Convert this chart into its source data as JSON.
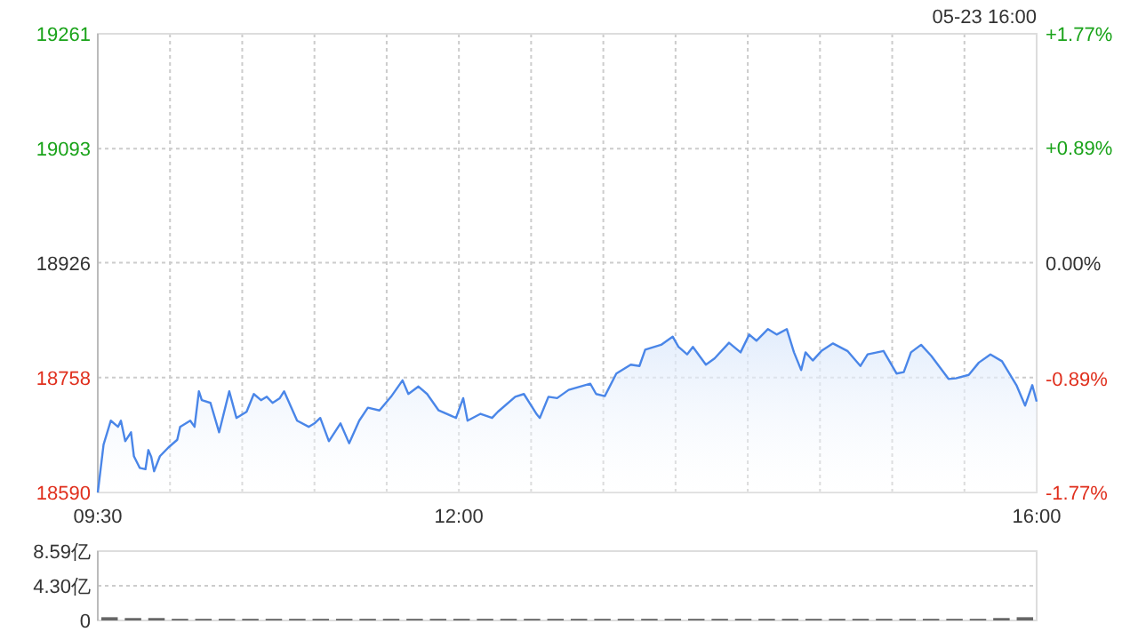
{
  "chart_data": [
    {
      "type": "area",
      "annotations": [
        "05-23 16:00"
      ],
      "grid": true,
      "xlim": [
        9.5,
        16
      ],
      "xticks": [
        {
          "value": 9.5,
          "label": "09:30"
        },
        {
          "value": 10,
          "label": null
        },
        {
          "value": 10.5,
          "label": null
        },
        {
          "value": 11,
          "label": null
        },
        {
          "value": 11.5,
          "label": null
        },
        {
          "value": 12,
          "label": "12:00"
        },
        {
          "value": 12.5,
          "label": null
        },
        {
          "value": 13,
          "label": null
        },
        {
          "value": 13.5,
          "label": null
        },
        {
          "value": 14,
          "label": null
        },
        {
          "value": 14.5,
          "label": null
        },
        {
          "value": 15,
          "label": null
        },
        {
          "value": 15.5,
          "label": null
        },
        {
          "value": 16,
          "label": "16:00"
        }
      ],
      "ylim": [
        18590,
        19261
      ],
      "yticks": [
        18590,
        18758,
        18926,
        19093,
        19261
      ],
      "y2lim": [
        -1.77,
        1.77
      ],
      "y2ticks": [
        {
          "value": -1.77,
          "label": "-1.77%"
        },
        {
          "value": -0.89,
          "label": "-0.89%"
        },
        {
          "value": 0,
          "label": "0.00%"
        },
        {
          "value": 0.89,
          "label": "+0.89%"
        },
        {
          "value": 1.77,
          "label": "+1.77%"
        }
      ],
      "series": [
        {
          "color": "#4a86e8",
          "x": [
            9.5,
            9.54,
            9.59,
            9.64,
            9.66,
            9.69,
            9.73,
            9.75,
            9.79,
            9.83,
            9.85,
            9.87,
            9.89,
            9.93,
            9.99,
            10.05,
            10.07,
            10.14,
            10.17,
            10.2,
            10.22,
            10.28,
            10.34,
            10.41,
            10.46,
            10.53,
            10.58,
            10.63,
            10.67,
            10.71,
            10.76,
            10.79,
            10.88,
            10.96,
            11.0,
            11.04,
            11.1,
            11.18,
            11.24,
            11.31,
            11.37,
            11.45,
            11.53,
            11.61,
            11.65,
            11.72,
            11.78,
            11.86,
            11.98,
            12.03,
            12.06,
            12.15,
            12.23,
            12.27,
            12.39,
            12.45,
            12.54,
            12.56,
            12.62,
            12.68,
            12.76,
            12.91,
            12.95,
            13.01,
            13.09,
            13.19,
            13.25,
            13.29,
            13.4,
            13.48,
            13.52,
            13.58,
            13.62,
            13.71,
            13.77,
            13.87,
            13.95,
            14.01,
            14.06,
            14.14,
            14.2,
            14.27,
            14.32,
            14.37,
            14.4,
            14.45,
            14.51,
            14.59,
            14.69,
            14.78,
            14.83,
            14.94,
            15.03,
            15.08,
            15.13,
            15.2,
            15.27,
            15.39,
            15.44,
            15.53,
            15.6,
            15.68,
            15.76,
            15.86,
            15.92,
            15.97,
            16.0
          ],
          "values": [
            18590,
            18660,
            18695,
            18686,
            18695,
            18665,
            18678,
            18643,
            18626,
            18624,
            18652,
            18642,
            18621,
            18643,
            18656,
            18667,
            18686,
            18695,
            18686,
            18738,
            18725,
            18721,
            18678,
            18738,
            18699,
            18708,
            18734,
            18725,
            18730,
            18721,
            18728,
            18738,
            18695,
            18686,
            18691,
            18699,
            18665,
            18691,
            18662,
            18695,
            18714,
            18710,
            18730,
            18754,
            18734,
            18745,
            18734,
            18710,
            18699,
            18728,
            18695,
            18705,
            18699,
            18708,
            18730,
            18734,
            18704,
            18699,
            18730,
            18728,
            18740,
            18749,
            18734,
            18731,
            18764,
            18777,
            18775,
            18799,
            18806,
            18818,
            18803,
            18792,
            18803,
            18777,
            18786,
            18809,
            18795,
            18821,
            18812,
            18829,
            18821,
            18829,
            18795,
            18769,
            18795,
            18783,
            18797,
            18808,
            18797,
            18775,
            18792,
            18797,
            18764,
            18766,
            18795,
            18806,
            18790,
            18756,
            18757,
            18762,
            18780,
            18792,
            18782,
            18747,
            18717,
            18747,
            18723
          ]
        }
      ]
    },
    {
      "type": "bar",
      "grid": "y",
      "tick_labels": "y",
      "ylim": [
        0,
        8.59
      ],
      "yticks": [
        0,
        {
          "value": 4.3,
          "label": "4.30亿"
        },
        {
          "value": 8.59,
          "label": "8.59亿"
        }
      ],
      "categories": [
        null,
        null,
        null,
        null,
        null,
        null,
        null,
        null,
        null,
        null,
        null,
        null,
        null,
        null,
        null,
        null,
        null,
        null,
        null,
        null,
        null,
        null,
        null,
        null,
        null,
        null,
        null,
        null,
        null,
        null,
        null,
        null,
        null,
        null,
        null,
        null,
        null,
        null,
        null,
        null
      ],
      "series": [
        {
          "color": "#666666",
          "values": [
            0.4,
            0.3,
            0.3,
            0.2,
            0.2,
            0.2,
            0.2,
            0.2,
            0.2,
            0.2,
            0.2,
            0.2,
            0.2,
            0.2,
            0.2,
            0.2,
            0.2,
            0.2,
            0.2,
            0.2,
            0.2,
            0.2,
            0.2,
            0.2,
            0.2,
            0.2,
            0.2,
            0.2,
            0.2,
            0.2,
            0.2,
            0.2,
            0.2,
            0.2,
            0.2,
            0.2,
            0.2,
            0.2,
            0.3,
            0.4
          ]
        }
      ]
    }
  ]
}
